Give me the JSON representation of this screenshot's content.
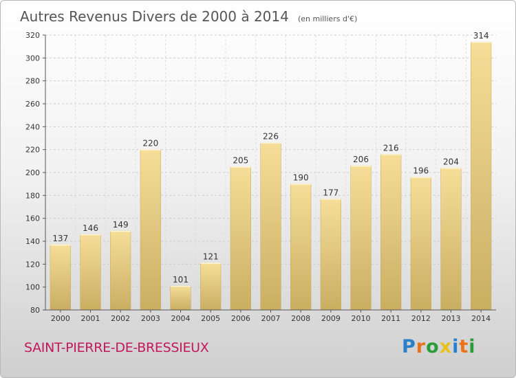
{
  "chart_data": {
    "type": "bar",
    "title": "Autres Revenus Divers de 2000 à 2014",
    "unit": "(en milliers d'€)",
    "categories": [
      "2000",
      "2001",
      "2002",
      "2003",
      "2004",
      "2005",
      "2006",
      "2007",
      "2008",
      "2009",
      "2010",
      "2011",
      "2012",
      "2013",
      "2014"
    ],
    "values": [
      137,
      146,
      149,
      220,
      101,
      121,
      205,
      226,
      190,
      177,
      206,
      216,
      196,
      204,
      314
    ],
    "ylim": [
      80,
      320
    ],
    "yticks": [
      80,
      100,
      120,
      140,
      160,
      180,
      200,
      220,
      240,
      260,
      280,
      300,
      320
    ],
    "grid": true,
    "bar_color": "#e8cc80"
  },
  "footer": {
    "commune": "SAINT-PIERRE-DE-BRESSIEUX"
  },
  "logo": {
    "letters": [
      "P",
      "r",
      "o",
      "x",
      "i",
      "t",
      "i"
    ],
    "colors": [
      "#2a7fc9",
      "#e8731a",
      "#2a9d3a",
      "#e8c21a",
      "#2a7fc9",
      "#e8731a",
      "#2a9d3a"
    ]
  }
}
